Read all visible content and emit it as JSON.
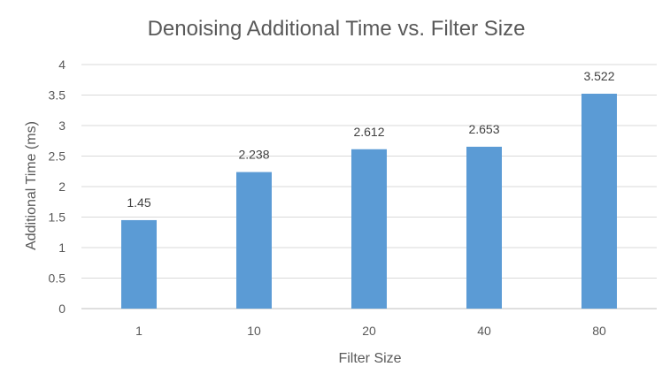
{
  "chart_data": {
    "type": "bar",
    "title": "Denoising Additional Time vs. Filter Size",
    "xlabel": "Filter Size",
    "ylabel": "Additional Time (ms)",
    "categories": [
      "1",
      "10",
      "20",
      "40",
      "80"
    ],
    "values": [
      1.45,
      2.238,
      2.612,
      2.653,
      3.522
    ],
    "data_labels": [
      "1.45",
      "2.238",
      "2.612",
      "2.653",
      "3.522"
    ],
    "ylim": [
      0,
      4
    ],
    "yticks": [
      0,
      0.5,
      1,
      1.5,
      2,
      2.5,
      3,
      3.5,
      4
    ],
    "ytick_labels": [
      "0",
      "0.5",
      "1",
      "1.5",
      "2",
      "2.5",
      "3",
      "3.5",
      "4"
    ],
    "grid": true,
    "legend": "none",
    "bar_color": "#5b9bd5"
  }
}
